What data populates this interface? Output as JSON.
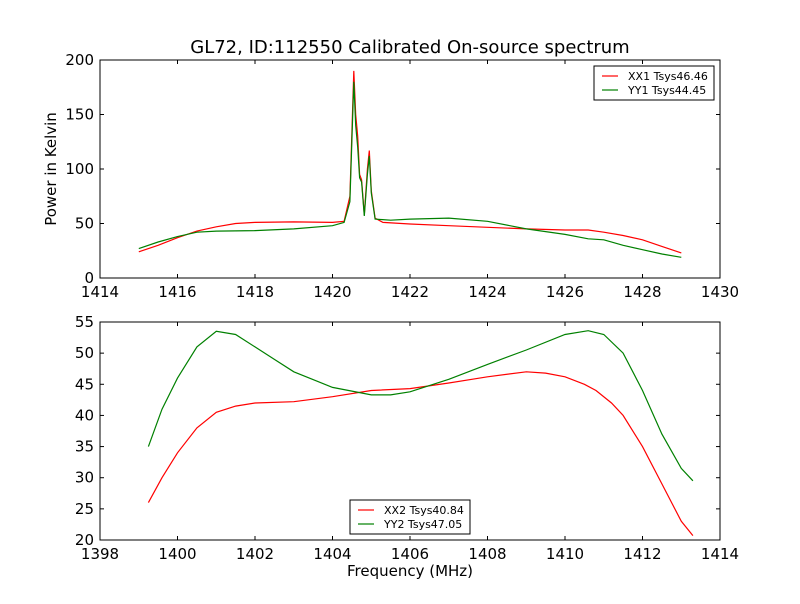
{
  "chart_data": [
    {
      "type": "line",
      "title": "GL72, ID:112550 Calibrated On-source spectrum",
      "xlabel": "",
      "ylabel": "Power in Kelvin",
      "xlim": [
        1414,
        1430
      ],
      "ylim": [
        0,
        200
      ],
      "xticks": [
        1414,
        1416,
        1418,
        1420,
        1422,
        1424,
        1426,
        1428,
        1430
      ],
      "yticks": [
        0,
        50,
        100,
        150,
        200
      ],
      "legend_position": "top-right",
      "series": [
        {
          "name": "XX1 Tsys46.46",
          "color": "#ff0000",
          "x": [
            1415,
            1415.5,
            1416,
            1416.5,
            1417,
            1417.5,
            1418,
            1419,
            1420,
            1420.3,
            1420.45,
            1420.55,
            1420.6,
            1420.65,
            1420.7,
            1420.75,
            1420.82,
            1420.9,
            1420.95,
            1421.0,
            1421.1,
            1421.3,
            1422,
            1423,
            1424,
            1425,
            1426,
            1426.6,
            1427,
            1427.5,
            1428,
            1428.5,
            1429
          ],
          "y": [
            24,
            30,
            37,
            43,
            47,
            50,
            51,
            51.5,
            51,
            52,
            75,
            190,
            150,
            130,
            95,
            90,
            58,
            100,
            117,
            80,
            55,
            51,
            49.5,
            48,
            46.5,
            45,
            44,
            44,
            42,
            39,
            35,
            29,
            23
          ]
        },
        {
          "name": "YY1 Tsys44.45",
          "color": "#008000",
          "x": [
            1415,
            1415.5,
            1416,
            1416.5,
            1417,
            1418,
            1419,
            1420,
            1420.3,
            1420.45,
            1420.55,
            1420.6,
            1420.65,
            1420.7,
            1420.75,
            1420.82,
            1420.9,
            1420.95,
            1421.0,
            1421.1,
            1421.5,
            1422,
            1423,
            1424,
            1425,
            1426,
            1426.6,
            1427,
            1427.5,
            1428,
            1428.5,
            1429
          ],
          "y": [
            27,
            33,
            38,
            42,
            43,
            43.5,
            45,
            48,
            51,
            70,
            180,
            140,
            120,
            92,
            88,
            57,
            95,
            112,
            78,
            54,
            53,
            54,
            55,
            52,
            45,
            40,
            36,
            35,
            30,
            26,
            22,
            19
          ]
        }
      ]
    },
    {
      "type": "line",
      "title": "",
      "xlabel": "Frequency (MHz)",
      "ylabel": "",
      "xlim": [
        1398,
        1414
      ],
      "ylim": [
        20,
        55
      ],
      "xticks": [
        1398,
        1400,
        1402,
        1404,
        1406,
        1408,
        1410,
        1412,
        1414
      ],
      "yticks": [
        20,
        25,
        30,
        35,
        40,
        45,
        50,
        55
      ],
      "legend_position": "bottom-center",
      "series": [
        {
          "name": "XX2 Tsys40.84",
          "color": "#ff0000",
          "x": [
            1399.25,
            1399.6,
            1400,
            1400.5,
            1401,
            1401.5,
            1402,
            1403,
            1404,
            1405,
            1406,
            1407,
            1408,
            1409,
            1409.5,
            1410,
            1410.5,
            1410.8,
            1411.2,
            1411.5,
            1412,
            1412.5,
            1413,
            1413.3
          ],
          "y": [
            26,
            30,
            34,
            38,
            40.5,
            41.5,
            42,
            42.2,
            43,
            44,
            44.3,
            45.2,
            46.2,
            47,
            46.8,
            46.2,
            45,
            44,
            42,
            40,
            35,
            29,
            23,
            20.7
          ]
        },
        {
          "name": "YY2 Tsys47.05",
          "color": "#008000",
          "x": [
            1399.25,
            1399.6,
            1400,
            1400.5,
            1401,
            1401.5,
            1402,
            1402.5,
            1403,
            1404,
            1405,
            1405.5,
            1406,
            1407,
            1408,
            1409,
            1410,
            1410.6,
            1411,
            1411.5,
            1412,
            1412.5,
            1413,
            1413.3
          ],
          "y": [
            35,
            41,
            46,
            51,
            53.5,
            53,
            51,
            49,
            47,
            44.5,
            43.3,
            43.3,
            43.8,
            45.8,
            48.2,
            50.5,
            53,
            53.6,
            53,
            50,
            44,
            37,
            31.5,
            29.5
          ]
        }
      ]
    }
  ]
}
